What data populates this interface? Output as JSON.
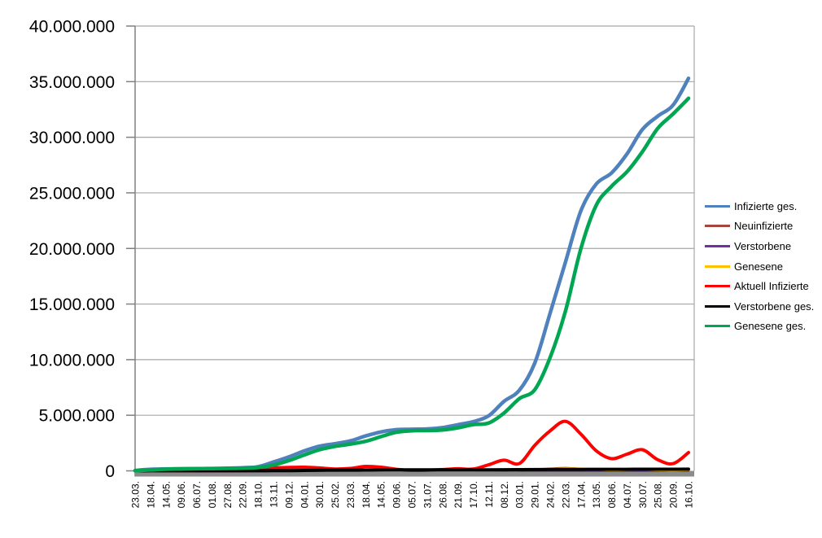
{
  "chart_data": {
    "type": "line",
    "title": "",
    "xlabel": "",
    "ylabel": "",
    "grid": true,
    "legend_position": "right",
    "plot_colors": {
      "gridline": "#A6A6A6",
      "axis_line": "#808080",
      "axis_bottom_bar": "#8C8C8C",
      "background": "#FFFFFF",
      "text": "#000000"
    },
    "y_axis": {
      "min": 0,
      "max": 40000000,
      "step": 5000000,
      "tick_labels": [
        "40.000.000",
        "35.000.000",
        "30.000.000",
        "25.000.000",
        "20.000.000",
        "15.000.000",
        "10.000.000",
        "5.000.000",
        "0"
      ]
    },
    "categories": [
      "23.03.",
      "18.04.",
      "14.05.",
      "09.06.",
      "06.07.",
      "01.08.",
      "27.08.",
      "22.09.",
      "18.10.",
      "13.11.",
      "09.12.",
      "04.01.",
      "30.01.",
      "25.02.",
      "23.03.",
      "18.04.",
      "14.05.",
      "09.06.",
      "05.07.",
      "31.07.",
      "26.08.",
      "21.09.",
      "17.10.",
      "12.11.",
      "08.12.",
      "03.01.",
      "29.01.",
      "24.02.",
      "22.03.",
      "17.04.",
      "13.05.",
      "08.06.",
      "04.07.",
      "30.07.",
      "25.08.",
      "20.09.",
      "16.10."
    ],
    "series": [
      {
        "name": "Infizierte ges.",
        "color": "#4F81BD",
        "width": 4.5,
        "values": [
          30000,
          140000,
          170000,
          190000,
          200000,
          210000,
          240000,
          280000,
          370000,
          790000,
          1250000,
          1790000,
          2220000,
          2440000,
          2690000,
          3140000,
          3500000,
          3700000,
          3740000,
          3770000,
          3890000,
          4150000,
          4420000,
          4950000,
          6250000,
          7250000,
          9700000,
          14200000,
          18800000,
          23400000,
          25800000,
          26800000,
          28500000,
          30700000,
          31900000,
          32900000,
          35300000
        ]
      },
      {
        "name": "Neuinfizierte",
        "color": "#A5453D",
        "width": 2.5,
        "values": [
          5000,
          4000,
          1000,
          0,
          0,
          1000,
          1000,
          2000,
          6000,
          18000,
          22000,
          16000,
          12000,
          8000,
          15000,
          22000,
          12000,
          4000,
          1000,
          2000,
          8000,
          10000,
          10000,
          35000,
          60000,
          40000,
          150000,
          200000,
          260000,
          180000,
          60000,
          40000,
          100000,
          90000,
          40000,
          30000,
          90000
        ]
      },
      {
        "name": "Verstorbene",
        "color": "#7030A0",
        "width": 2.5,
        "values": [
          0,
          1000,
          1000,
          0,
          0,
          0,
          0,
          0,
          0,
          1000,
          3000,
          5000,
          6000,
          4000,
          2000,
          2000,
          2000,
          1000,
          1000,
          0,
          0,
          0,
          1000,
          1000,
          2000,
          2000,
          1000,
          1000,
          2000,
          2000,
          1000,
          1000,
          1000,
          1000,
          1000,
          1000,
          1000
        ]
      },
      {
        "name": "Genesene",
        "color": "#FFC000",
        "width": 2.5,
        "values": [
          3000,
          5000,
          2000,
          1000,
          0,
          1000,
          1000,
          1000,
          4000,
          10000,
          18000,
          20000,
          14000,
          9000,
          11000,
          18000,
          16000,
          7000,
          2000,
          1000,
          5000,
          8000,
          9000,
          20000,
          45000,
          50000,
          90000,
          170000,
          230000,
          210000,
          110000,
          50000,
          80000,
          100000,
          60000,
          30000,
          70000
        ]
      },
      {
        "name": "Aktuell Infizierte",
        "color": "#FF0000",
        "width": 4,
        "values": [
          20000,
          60000,
          20000,
          10000,
          10000,
          10000,
          20000,
          30000,
          60000,
          260000,
          310000,
          330000,
          260000,
          170000,
          220000,
          400000,
          330000,
          140000,
          40000,
          60000,
          120000,
          190000,
          170000,
          550000,
          960000,
          660000,
          2300000,
          3600000,
          4450000,
          3300000,
          1800000,
          1100000,
          1500000,
          1900000,
          1000000,
          650000,
          1650000
        ]
      },
      {
        "name": "Verstorbene ges.",
        "color": "#000000",
        "width": 4,
        "values": [
          0,
          4000,
          8000,
          9000,
          9000,
          9000,
          9000,
          9000,
          10000,
          13000,
          20000,
          35000,
          56000,
          69000,
          75000,
          80000,
          86000,
          89000,
          91000,
          92000,
          92000,
          93000,
          95000,
          98000,
          104000,
          112000,
          118000,
          122000,
          127000,
          133000,
          137000,
          140000,
          142000,
          144000,
          147000,
          149000,
          151000
        ]
      },
      {
        "name": "Genesene ges.",
        "color": "#00A651",
        "width": 4.5,
        "values": [
          10000,
          80000,
          150000,
          170000,
          190000,
          200000,
          220000,
          250000,
          300000,
          520000,
          920000,
          1430000,
          1900000,
          2200000,
          2400000,
          2660000,
          3080000,
          3470000,
          3610000,
          3620000,
          3680000,
          3870000,
          4160000,
          4300000,
          5200000,
          6500000,
          7300000,
          10200000,
          14400000,
          20000000,
          23900000,
          25600000,
          26900000,
          28700000,
          30800000,
          32100000,
          33500000
        ]
      }
    ]
  }
}
